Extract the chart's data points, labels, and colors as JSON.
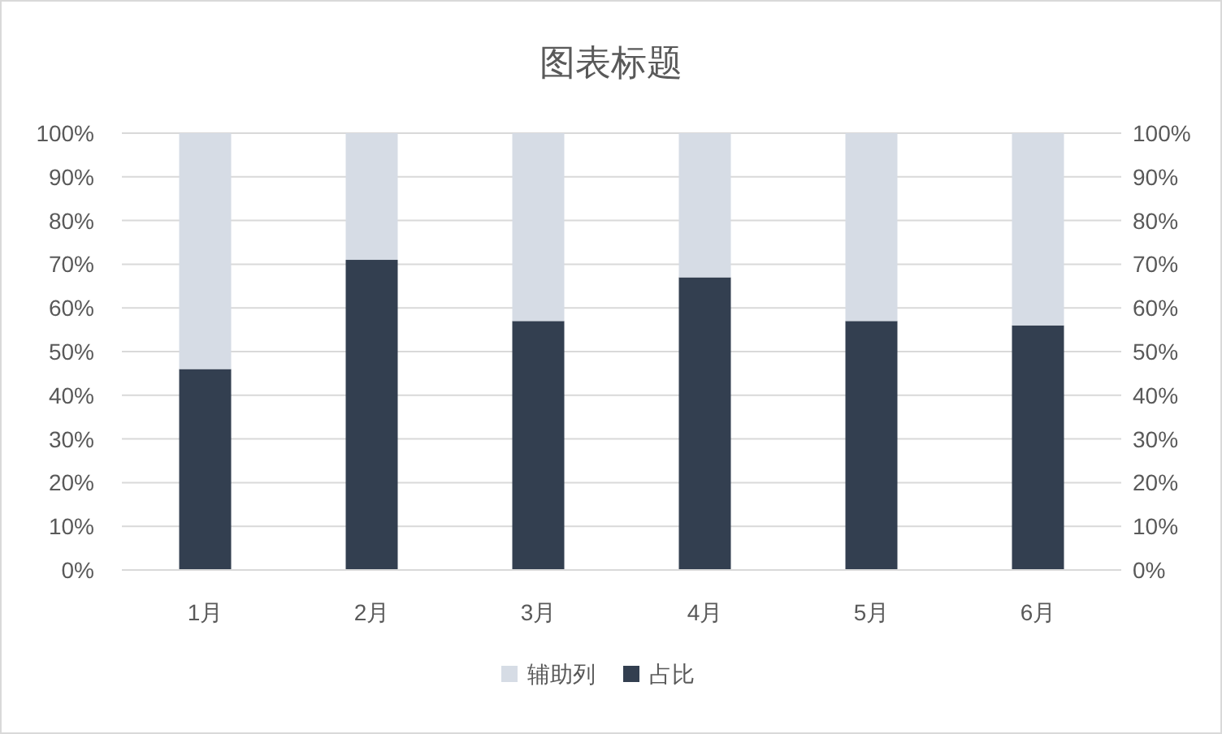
{
  "chart_data": {
    "type": "bar",
    "title": "图表标题",
    "categories": [
      "1月",
      "2月",
      "3月",
      "4月",
      "5月",
      "6月"
    ],
    "series": [
      {
        "name": "占比",
        "color": "#333f50",
        "values": [
          46,
          71,
          57,
          67,
          57,
          56
        ]
      },
      {
        "name": "辅助列",
        "color": "#d6dce5",
        "values": [
          54,
          29,
          43,
          33,
          43,
          44
        ]
      }
    ],
    "stacked": true,
    "ylim": [
      0,
      100
    ],
    "yticks": [
      {
        "value": 0,
        "label": "0%"
      },
      {
        "value": 10,
        "label": "10%"
      },
      {
        "value": 20,
        "label": "20%"
      },
      {
        "value": 30,
        "label": "30%"
      },
      {
        "value": 40,
        "label": "40%"
      },
      {
        "value": 50,
        "label": "50%"
      },
      {
        "value": 60,
        "label": "60%"
      },
      {
        "value": 70,
        "label": "70%"
      },
      {
        "value": 80,
        "label": "80%"
      },
      {
        "value": 90,
        "label": "90%"
      },
      {
        "value": 100,
        "label": "100%"
      }
    ],
    "y2lim": [
      0,
      100
    ],
    "y2ticks": [
      {
        "value": 0,
        "label": "0%"
      },
      {
        "value": 10,
        "label": "10%"
      },
      {
        "value": 20,
        "label": "20%"
      },
      {
        "value": 30,
        "label": "30%"
      },
      {
        "value": 40,
        "label": "40%"
      },
      {
        "value": 50,
        "label": "50%"
      },
      {
        "value": 60,
        "label": "60%"
      },
      {
        "value": 70,
        "label": "70%"
      },
      {
        "value": 80,
        "label": "80%"
      },
      {
        "value": 90,
        "label": "90%"
      },
      {
        "value": 100,
        "label": "100%"
      }
    ],
    "grid": "y",
    "legend": "bottom"
  }
}
